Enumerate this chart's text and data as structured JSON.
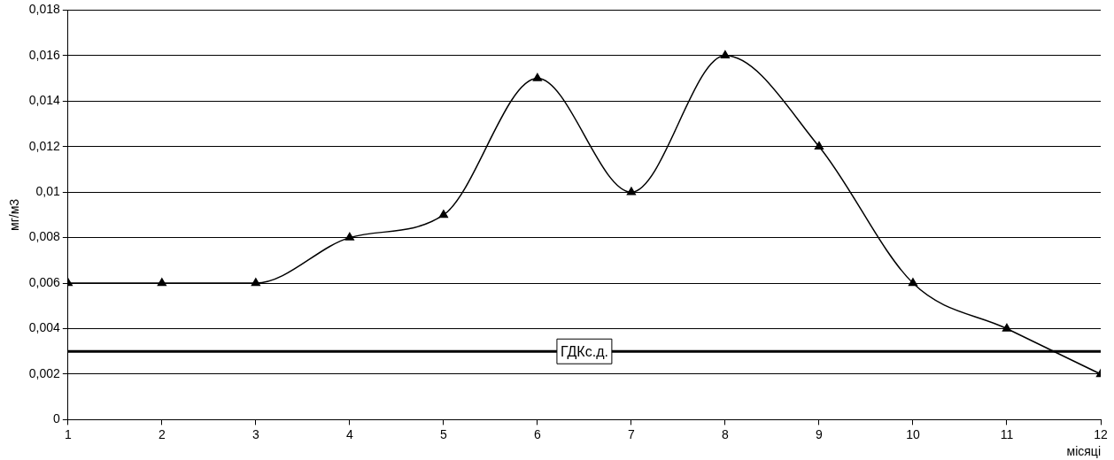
{
  "chart_data": {
    "type": "line",
    "xlabel": "місяці",
    "ylabel": "мг/м3",
    "x": [
      1,
      2,
      3,
      4,
      5,
      6,
      7,
      8,
      9,
      10,
      11,
      12
    ],
    "series": [
      {
        "color": "#000000",
        "values": [
          0.006,
          0.006,
          0.006,
          0.008,
          0.009,
          0.015,
          0.01,
          0.016,
          0.012,
          0.006,
          0.004,
          0.002
        ]
      }
    ],
    "xlim": [
      1,
      12
    ],
    "xticks": [
      1,
      2,
      3,
      4,
      5,
      6,
      7,
      8,
      9,
      10,
      11,
      12
    ],
    "ylim": [
      0,
      0.018
    ],
    "yticks": [
      0,
      {
        "value": 0.002,
        "label": "0,002"
      },
      {
        "value": 0.004,
        "label": "0,004"
      },
      {
        "value": 0.006,
        "label": "0,006"
      },
      {
        "value": 0.008,
        "label": "0,008"
      },
      {
        "value": 0.01,
        "label": "0,01"
      },
      {
        "value": 0.012,
        "label": "0,012"
      },
      {
        "value": 0.014,
        "label": "0,014"
      },
      {
        "value": 0.016,
        "label": "0,016"
      },
      {
        "value": 0.018,
        "label": "0,018"
      }
    ],
    "ref_lines": [
      {
        "axis": "y",
        "value": 0.003,
        "label": "ГДКс.д.",
        "color": "#000000"
      }
    ],
    "grid": "y",
    "legend": false,
    "marker": "triangle",
    "line_style": "solid"
  }
}
